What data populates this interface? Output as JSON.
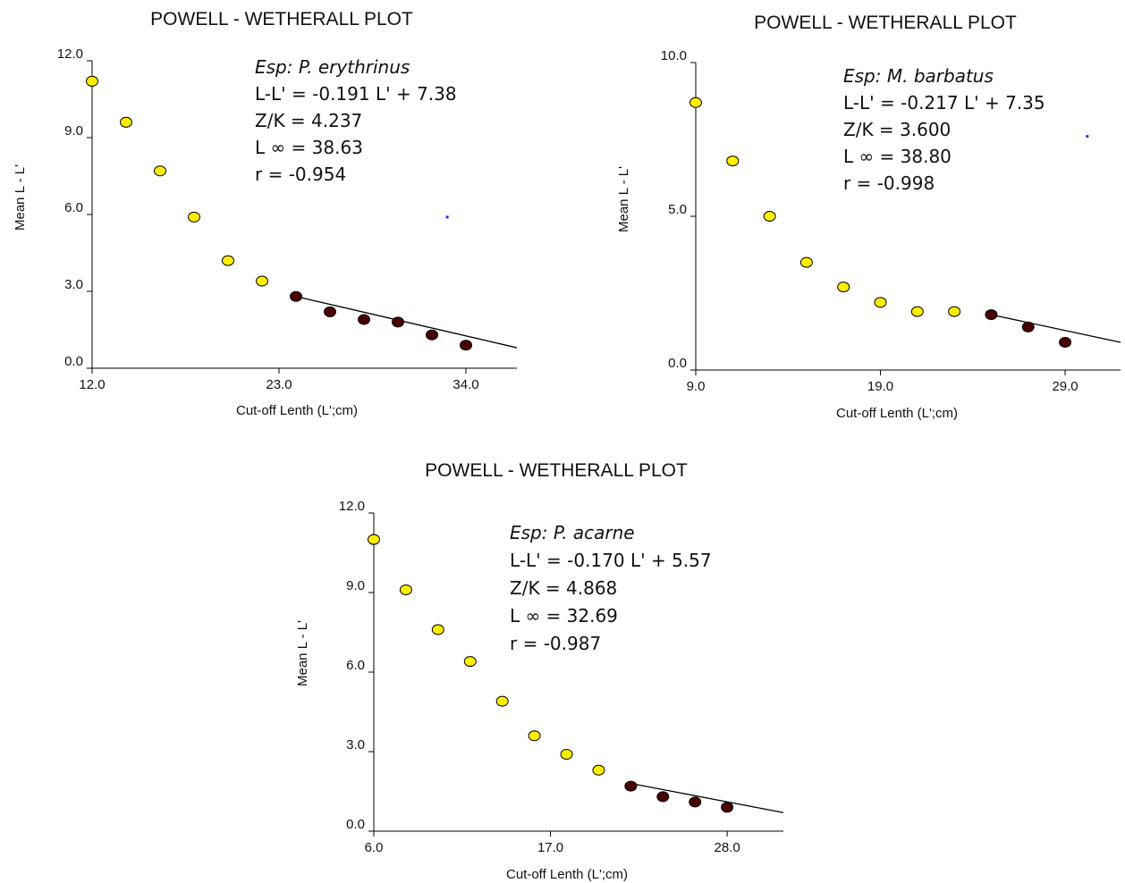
{
  "colors": {
    "open_marker": "#ffee00",
    "filled_marker": "#4a0000",
    "marker_edge": "#000000",
    "axis": "#000000",
    "regression_line": "#000000",
    "stray_point": "#2a2aff"
  },
  "chart_data": [
    {
      "type": "scatter",
      "title": "POWELL - WETHERALL PLOT",
      "xlabel": "Cut-off Lenth (L';cm)",
      "ylabel": "Mean L - L'",
      "xlim": [
        12.0,
        37.0
      ],
      "ylim": [
        0.0,
        12.0
      ],
      "xticks": [
        "12.0",
        "23.0",
        "34.0"
      ],
      "yticks": [
        "0.0",
        "3.0",
        "6.0",
        "9.0",
        "12.0"
      ],
      "annotation": {
        "species": "Esp: P. erythrinus",
        "equation": "L-L' = -0.191 L' + 7.38",
        "zk": "Z/K = 4.237",
        "linf": "L ∞ = 38.63",
        "r": "r = -0.954"
      },
      "series": [
        {
          "style": "open",
          "x": [
            12.0,
            14.0,
            16.0,
            18.0,
            20.0,
            22.0
          ],
          "y": [
            11.2,
            9.6,
            7.7,
            5.9,
            4.2,
            3.4
          ]
        },
        {
          "style": "filled",
          "x": [
            24.0,
            26.0,
            28.0,
            30.0,
            32.0,
            34.0
          ],
          "y": [
            2.8,
            2.2,
            1.9,
            1.8,
            1.3,
            0.9
          ]
        }
      ],
      "regression": {
        "x": [
          24.0,
          37.0
        ],
        "y": [
          2.8,
          0.8
        ]
      },
      "stray_point": {
        "x": 32.9,
        "y": 5.9
      }
    },
    {
      "type": "scatter",
      "title": "POWELL - WETHERALL PLOT",
      "xlabel": "Cut-off Lenth (L';cm)",
      "ylabel": "Mean L - L'",
      "xlim": [
        9.0,
        32.0
      ],
      "ylim": [
        0.0,
        10.0
      ],
      "xticks": [
        "9.0",
        "19.0",
        "29.0"
      ],
      "yticks": [
        "0.0",
        "5.0",
        "10.0"
      ],
      "annotation": {
        "species": "Esp: M. barbatus",
        "equation": "L-L' = -0.217 L' + 7.35",
        "zk": "Z/K = 3.600",
        "linf": "L ∞ = 38.80",
        "r": "r = -0.998"
      },
      "series": [
        {
          "style": "open",
          "x": [
            9.0,
            11.0,
            13.0,
            15.0,
            17.0,
            19.0,
            21.0,
            23.0
          ],
          "y": [
            8.7,
            6.8,
            5.0,
            3.5,
            2.7,
            2.2,
            1.9,
            1.9
          ]
        },
        {
          "style": "filled",
          "x": [
            25.0,
            27.0,
            29.0
          ],
          "y": [
            1.8,
            1.4,
            0.9
          ]
        }
      ],
      "regression": {
        "x": [
          25.0,
          32.0
        ],
        "y": [
          1.8,
          0.9
        ]
      },
      "stray_point": {
        "x": 30.2,
        "y": 7.6
      }
    },
    {
      "type": "scatter",
      "title": "POWELL - WETHERALL PLOT",
      "xlabel": "Cut-off Lenth (L';cm)",
      "ylabel": "Mean L - L'",
      "xlim": [
        6.0,
        31.5
      ],
      "ylim": [
        0.0,
        12.0
      ],
      "xticks": [
        "6.0",
        "17.0",
        "28.0"
      ],
      "yticks": [
        "0.0",
        "3.0",
        "6.0",
        "9.0",
        "12.0"
      ],
      "annotation": {
        "species": "Esp: P. acarne",
        "equation": "L-L' = -0.170 L' + 5.57",
        "zk": "Z/K = 4.868",
        "linf": "L ∞ = 32.69",
        "r": "r = -0.987"
      },
      "series": [
        {
          "style": "open",
          "x": [
            6.0,
            8.0,
            10.0,
            12.0,
            14.0,
            16.0,
            18.0,
            20.0
          ],
          "y": [
            11.0,
            9.1,
            7.6,
            6.4,
            4.9,
            3.6,
            2.9,
            2.3
          ]
        },
        {
          "style": "filled",
          "x": [
            22.0,
            24.0,
            26.0,
            28.0
          ],
          "y": [
            1.7,
            1.3,
            1.1,
            0.9
          ]
        }
      ],
      "regression": {
        "x": [
          22.0,
          31.5
        ],
        "y": [
          1.8,
          0.7
        ]
      }
    }
  ]
}
